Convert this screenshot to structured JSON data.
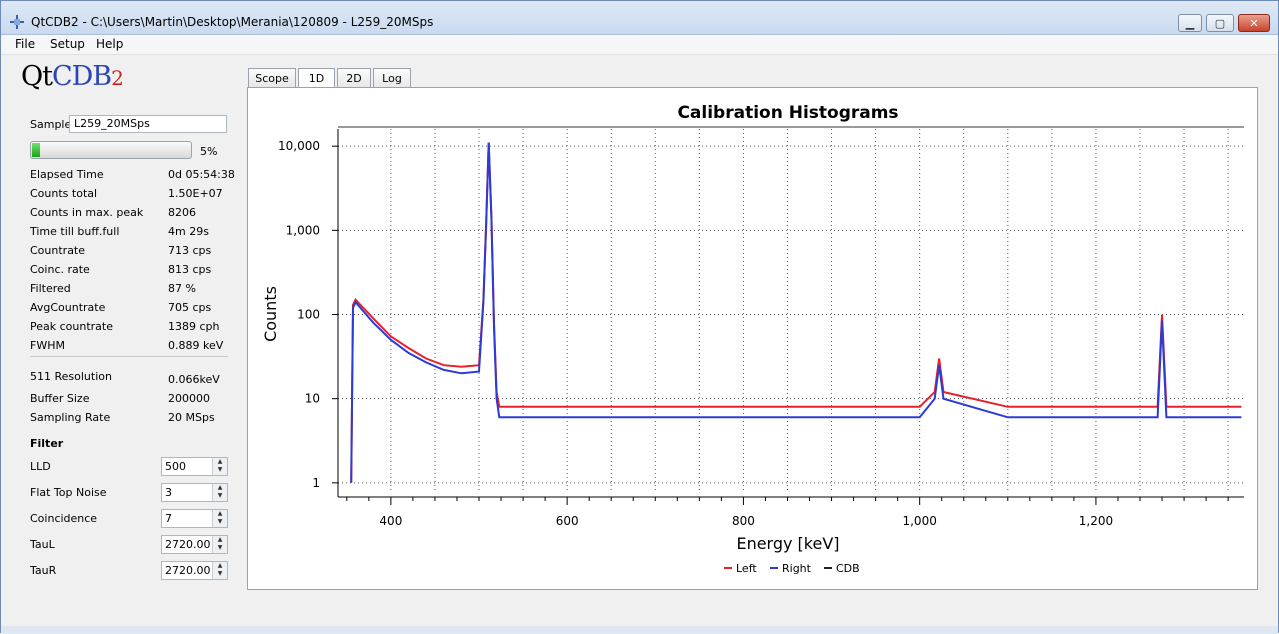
{
  "window": {
    "title": "QtCDB2 - C:\\Users\\Martin\\Desktop\\Merania\\120809 - L259_20MSps",
    "minimize": "▁",
    "maximize": "▢",
    "close": "✕"
  },
  "menu": [
    "File",
    "Setup",
    "Help"
  ],
  "logo": {
    "qt": "Qt",
    "cdb": "CDB",
    "sub": "2"
  },
  "sample": {
    "label": "Sample",
    "value": "L259_20MSps"
  },
  "progress": {
    "value": 5,
    "text": "5%"
  },
  "stats": [
    {
      "label": "Elapsed Time",
      "value": "0d 05:54:38"
    },
    {
      "label": "Counts total",
      "value": "1.50E+07"
    },
    {
      "label": "Counts in max. peak",
      "value": "8206"
    },
    {
      "label": "Time till buff.full",
      "value": "4m 29s"
    },
    {
      "label": "Countrate",
      "value": "713 cps"
    },
    {
      "label": "Coinc. rate",
      "value": "813 cps"
    },
    {
      "label": "Filtered",
      "value": "87 %"
    },
    {
      "label": "AvgCountrate",
      "value": "705 cps"
    },
    {
      "label": "Peak countrate",
      "value": "1389 cph"
    },
    {
      "label": "FWHM",
      "value": "0.889 keV"
    }
  ],
  "settings": [
    {
      "label": "511 Resolution",
      "value": "0.066keV"
    },
    {
      "label": "Buffer Size",
      "value": "200000"
    },
    {
      "label": "Sampling Rate",
      "value": "20 MSps"
    }
  ],
  "filter": {
    "heading": "Filter",
    "fields": [
      {
        "label": "LLD",
        "value": "500"
      },
      {
        "label": "Flat Top Noise",
        "value": "3"
      },
      {
        "label": "Coincidence",
        "value": "7"
      },
      {
        "label": "TauL",
        "value": "2720.00"
      },
      {
        "label": "TauR",
        "value": "2720.00"
      }
    ]
  },
  "tabs": [
    "Scope",
    "1D",
    "2D",
    "Log"
  ],
  "active_tab": "1D",
  "colors": {
    "left": "#e8202a",
    "right": "#2b3bd6",
    "cdb": "#222222"
  },
  "chart_data": {
    "type": "line",
    "title": "Calibration Histograms",
    "xlabel": "Energy [keV]",
    "ylabel": "Counts",
    "xlim": [
      340,
      1368
    ],
    "ylim": [
      0.8,
      16000
    ],
    "yscale": "log",
    "grid": true,
    "legend_position": "bottom",
    "x_ticks": [
      400,
      600,
      800,
      1000,
      1200
    ],
    "x_tick_labels": [
      "400",
      "600",
      "800",
      "1,000",
      "1,200"
    ],
    "y_ticks": [
      1,
      10,
      100,
      1000,
      10000
    ],
    "y_tick_labels": [
      "1",
      "10",
      "100",
      "1,000",
      "10,000"
    ],
    "series": [
      {
        "name": "Left",
        "color": "#e8202a",
        "x": [
          355,
          357,
          360,
          380,
          400,
          420,
          440,
          460,
          480,
          500,
          505,
          508,
          511,
          514,
          517,
          520,
          523,
          540,
          600,
          700,
          800,
          900,
          1000,
          1017,
          1022,
          1027,
          1100,
          1200,
          1270,
          1275,
          1280,
          1300,
          1365
        ],
        "y": [
          1,
          130,
          150,
          90,
          55,
          40,
          30,
          25,
          24,
          25,
          150,
          1200,
          11000,
          1500,
          80,
          12,
          8,
          8,
          8,
          8,
          8,
          8,
          8,
          12,
          30,
          12,
          8,
          8,
          8,
          100,
          8,
          8,
          8
        ]
      },
      {
        "name": "Right",
        "color": "#2b3bd6",
        "x": [
          355,
          357,
          360,
          380,
          400,
          420,
          440,
          460,
          480,
          500,
          505,
          508,
          511,
          514,
          517,
          520,
          523,
          540,
          600,
          700,
          800,
          900,
          1000,
          1017,
          1022,
          1027,
          1100,
          1200,
          1270,
          1275,
          1280,
          1300,
          1365
        ],
        "y": [
          1,
          120,
          140,
          80,
          50,
          35,
          27,
          22,
          20,
          21,
          140,
          1100,
          11000,
          1400,
          70,
          10,
          6,
          6,
          6,
          6,
          6,
          6,
          6,
          10,
          25,
          10,
          6,
          6,
          6,
          85,
          6,
          6,
          6
        ]
      },
      {
        "name": "CDB",
        "color": "#222222",
        "x": [],
        "y": []
      }
    ]
  }
}
